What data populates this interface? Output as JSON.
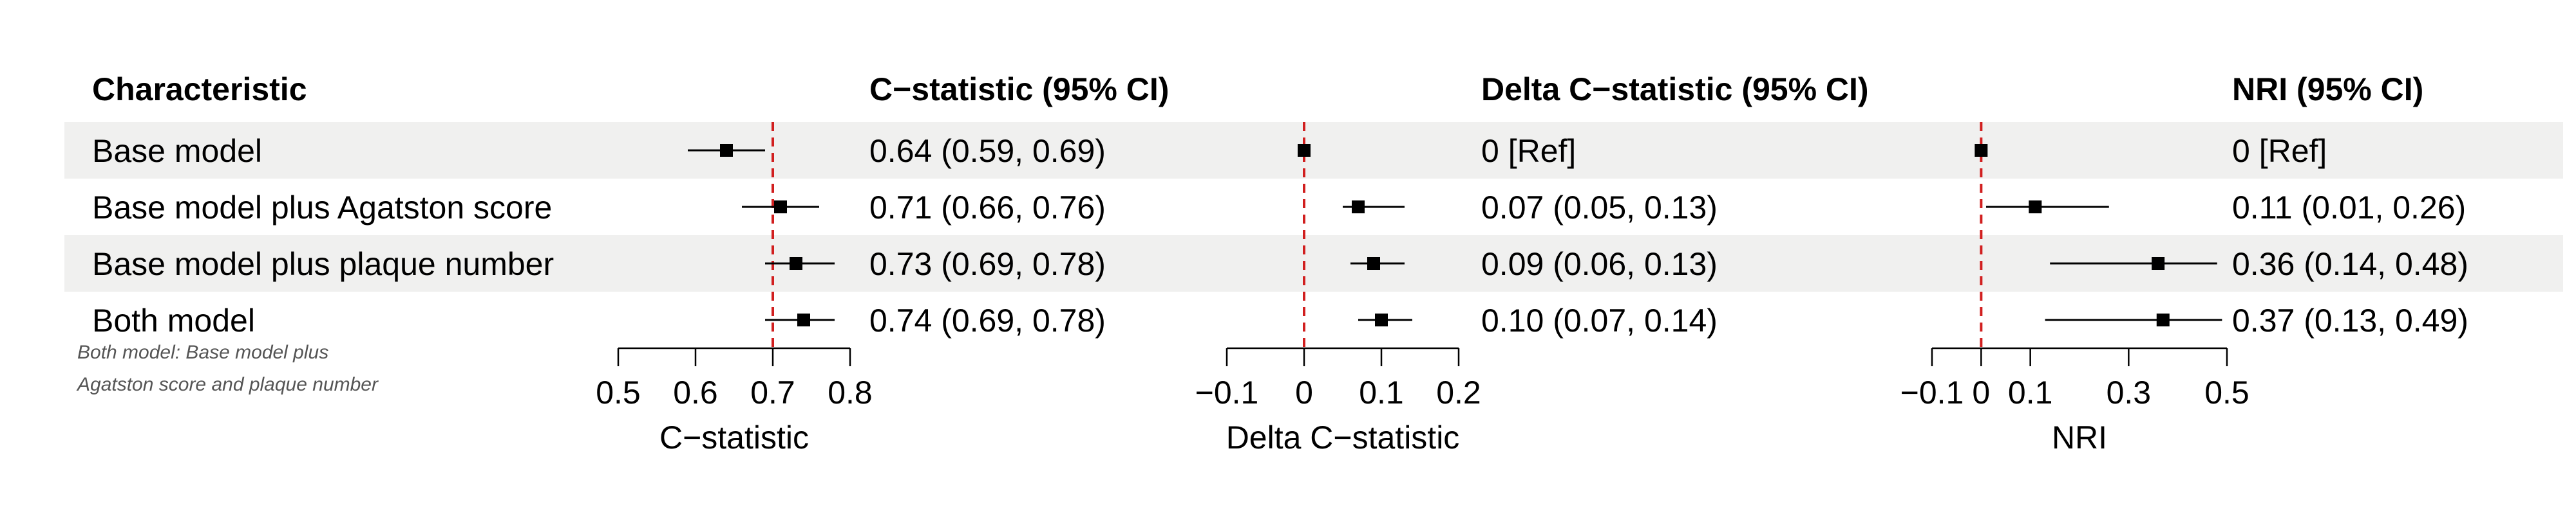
{
  "chart_data": {
    "type": "forest",
    "columns": {
      "characteristic": "Characteristic",
      "c_stat": "C−statistic (95% CI)",
      "delta_c": "Delta C−statistic (95% CI)",
      "nri": "NRI (95% CI)"
    },
    "rows": [
      {
        "label": "Base model",
        "c_stat": {
          "est": 0.64,
          "lo": 0.59,
          "hi": 0.69,
          "text": "0.64 (0.59, 0.69)"
        },
        "delta_c": {
          "est": 0,
          "lo": 0,
          "hi": 0,
          "text": "0 [Ref]"
        },
        "nri": {
          "est": 0,
          "lo": 0,
          "hi": 0,
          "text": "0 [Ref]"
        }
      },
      {
        "label": "Base model plus Agatston score",
        "c_stat": {
          "est": 0.71,
          "lo": 0.66,
          "hi": 0.76,
          "text": "0.71 (0.66, 0.76)"
        },
        "delta_c": {
          "est": 0.07,
          "lo": 0.05,
          "hi": 0.13,
          "text": "0.07 (0.05, 0.13)"
        },
        "nri": {
          "est": 0.11,
          "lo": 0.01,
          "hi": 0.26,
          "text": "0.11 (0.01, 0.26)"
        }
      },
      {
        "label": "Base model plus plaque number",
        "c_stat": {
          "est": 0.73,
          "lo": 0.69,
          "hi": 0.78,
          "text": "0.73 (0.69, 0.78)"
        },
        "delta_c": {
          "est": 0.09,
          "lo": 0.06,
          "hi": 0.13,
          "text": "0.09 (0.06, 0.13)"
        },
        "nri": {
          "est": 0.36,
          "lo": 0.14,
          "hi": 0.48,
          "text": "0.36 (0.14, 0.48)"
        }
      },
      {
        "label": "Both model",
        "c_stat": {
          "est": 0.74,
          "lo": 0.69,
          "hi": 0.78,
          "text": "0.74 (0.69, 0.78)"
        },
        "delta_c": {
          "est": 0.1,
          "lo": 0.07,
          "hi": 0.14,
          "text": "0.10 (0.07, 0.14)"
        },
        "nri": {
          "est": 0.37,
          "lo": 0.13,
          "hi": 0.49,
          "text": "0.37 (0.13, 0.49)"
        }
      }
    ],
    "panels": [
      {
        "key": "c_stat",
        "xlabel": "C−statistic",
        "ticks": [
          0.5,
          0.6,
          0.7,
          0.8
        ],
        "tick_labels": [
          "0.5",
          "0.6",
          "0.7",
          "0.8"
        ],
        "xlim": [
          0.5,
          0.8
        ],
        "ref_line": 0.7
      },
      {
        "key": "delta_c",
        "xlabel": "Delta C−statistic",
        "ticks": [
          -0.1,
          0,
          0.1,
          0.2
        ],
        "tick_labels": [
          "−0.1",
          "0",
          "0.1",
          "0.2"
        ],
        "xlim": [
          -0.1,
          0.2
        ],
        "ref_line": 0
      },
      {
        "key": "nri",
        "xlabel": "NRI",
        "ticks": [
          -0.1,
          0,
          0.1,
          0.3,
          0.5
        ],
        "tick_labels": [
          "−0.1",
          "0",
          "0.1",
          "0.3",
          "0.5"
        ],
        "xlim": [
          -0.1,
          0.5
        ],
        "ref_line": 0
      }
    ],
    "footnote": [
      "Both model: Base model plus",
      "Agatston score and plaque number"
    ],
    "colors": {
      "stripe": "#f0f0ef",
      "ref_line": "#d11f1f",
      "marker": "#000000"
    }
  }
}
